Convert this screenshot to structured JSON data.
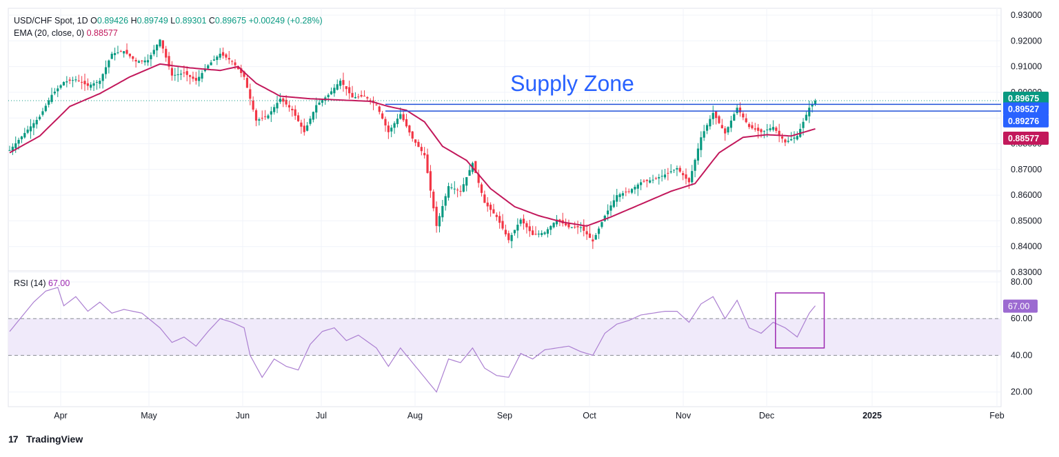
{
  "legend": {
    "symbol": "USD/CHF Spot, 1D",
    "open_label": "O",
    "open": "0.89426",
    "high_label": "H",
    "high": "0.89749",
    "low_label": "L",
    "low": "0.89301",
    "close_label": "C",
    "close": "0.89675",
    "change": "+0.00249 (+0.28%)",
    "ema_label": "EMA (20, close, 0)",
    "ema_value": "0.88577",
    "rsi_label": "RSI (14)",
    "rsi_value": "67.00"
  },
  "annotation": {
    "supply_zone": "Supply Zone"
  },
  "brand": {
    "logo": "17",
    "name": "TradingView"
  },
  "colors": {
    "up": "#089981",
    "down": "#f23645",
    "ema": "#c2185b",
    "zone": "#1e4fd8",
    "rsi": "#9c27b0",
    "rsi_band": "#f0eafa"
  },
  "chart_data": [
    {
      "type": "candlestick",
      "title": "USD/CHF Spot, 1D",
      "ylim": [
        0.83,
        0.935
      ],
      "y_ticks": [
        "0.83000",
        "0.84000",
        "0.85000",
        "0.86000",
        "0.87000",
        "0.88000",
        "0.89000",
        "0.90000",
        "0.91000",
        "0.92000",
        "0.93000"
      ],
      "x_ticks": [
        "Apr",
        "May",
        "Jun",
        "Jul",
        "Aug",
        "Sep",
        "Oct",
        "Nov",
        "Dec",
        "2025",
        "Feb"
      ],
      "supply_zone": [
        0.8927,
        0.8953
      ],
      "price_labels": [
        "0.89675",
        "0.89527",
        "0.89276",
        "0.88577"
      ],
      "series": [
        {
          "name": "USD/CHF",
          "close_path": [
            [
              0,
              0.8775
            ],
            [
              6,
              0.8855
            ],
            [
              10,
              0.8905
            ],
            [
              14,
              0.899
            ],
            [
              18,
              0.904
            ],
            [
              22,
              0.905
            ],
            [
              26,
              0.9025
            ],
            [
              30,
              0.9045
            ],
            [
              34,
              0.915
            ],
            [
              38,
              0.916
            ],
            [
              42,
              0.912
            ],
            [
              46,
              0.9125
            ],
            [
              50,
              0.9205
            ],
            [
              54,
              0.9065
            ],
            [
              58,
              0.9075
            ],
            [
              62,
              0.9045
            ],
            [
              66,
              0.9105
            ],
            [
              70,
              0.915
            ],
            [
              74,
              0.912
            ],
            [
              78,
              0.906
            ],
            [
              82,
              0.889
            ],
            [
              86,
              0.891
            ],
            [
              90,
              0.8975
            ],
            [
              94,
              0.893
            ],
            [
              98,
              0.8845
            ],
            [
              102,
              0.895
            ],
            [
              106,
              0.899
            ],
            [
              110,
              0.9045
            ],
            [
              114,
              0.898
            ],
            [
              118,
              0.8985
            ],
            [
              122,
              0.895
            ],
            [
              126,
              0.8845
            ],
            [
              130,
              0.8915
            ],
            [
              134,
              0.882
            ],
            [
              138,
              0.8755
            ],
            [
              142,
              0.848
            ],
            [
              146,
              0.8635
            ],
            [
              150,
              0.8615
            ],
            [
              154,
              0.8725
            ],
            [
              158,
              0.857
            ],
            [
              162,
              0.8515
            ],
            [
              166,
              0.8425
            ],
            [
              170,
              0.8505
            ],
            [
              174,
              0.8445
            ],
            [
              178,
              0.8455
            ],
            [
              182,
              0.8505
            ],
            [
              186,
              0.8475
            ],
            [
              190,
              0.8475
            ],
            [
              194,
              0.842
            ],
            [
              198,
              0.852
            ],
            [
              202,
              0.86
            ],
            [
              206,
              0.8615
            ],
            [
              210,
              0.865
            ],
            [
              214,
              0.866
            ],
            [
              218,
              0.868
            ],
            [
              222,
              0.8705
            ],
            [
              226,
              0.865
            ],
            [
              230,
              0.8825
            ],
            [
              234,
              0.892
            ],
            [
              238,
              0.884
            ],
            [
              242,
              0.894
            ],
            [
              246,
              0.8865
            ],
            [
              250,
              0.8845
            ],
            [
              254,
              0.8865
            ],
            [
              258,
              0.8805
            ],
            [
              262,
              0.883
            ],
            [
              266,
              0.894
            ],
            [
              268,
              0.89675
            ]
          ]
        },
        {
          "name": "EMA (20, close, 0)",
          "path": [
            [
              0,
              0.8765
            ],
            [
              10,
              0.883
            ],
            [
              20,
              0.8945
            ],
            [
              30,
              0.8995
            ],
            [
              40,
              0.906
            ],
            [
              50,
              0.911
            ],
            [
              60,
              0.9095
            ],
            [
              70,
              0.9085
            ],
            [
              76,
              0.91
            ],
            [
              82,
              0.9035
            ],
            [
              90,
              0.8985
            ],
            [
              100,
              0.8975
            ],
            [
              110,
              0.897
            ],
            [
              120,
              0.8965
            ],
            [
              126,
              0.8945
            ],
            [
              132,
              0.893
            ],
            [
              138,
              0.8885
            ],
            [
              144,
              0.879
            ],
            [
              152,
              0.8735
            ],
            [
              160,
              0.8625
            ],
            [
              168,
              0.8555
            ],
            [
              176,
              0.852
            ],
            [
              184,
              0.8495
            ],
            [
              192,
              0.848
            ],
            [
              200,
              0.8515
            ],
            [
              210,
              0.8565
            ],
            [
              220,
              0.8615
            ],
            [
              228,
              0.8645
            ],
            [
              236,
              0.8765
            ],
            [
              244,
              0.8825
            ],
            [
              252,
              0.8835
            ],
            [
              260,
              0.883
            ],
            [
              268,
              0.8858
            ]
          ]
        }
      ]
    },
    {
      "type": "line",
      "title": "RSI (14)",
      "ylim": [
        15,
        85
      ],
      "y_ticks": [
        "20.00",
        "40.00",
        "60.00",
        "80.00"
      ],
      "band": [
        40,
        60
      ],
      "series": [
        {
          "name": "RSI (14)",
          "path": [
            [
              0,
              53
            ],
            [
              4,
              61
            ],
            [
              8,
              69
            ],
            [
              12,
              75
            ],
            [
              16,
              77
            ],
            [
              18,
              67
            ],
            [
              22,
              72
            ],
            [
              26,
              64
            ],
            [
              30,
              69
            ],
            [
              34,
              63
            ],
            [
              38,
              65
            ],
            [
              44,
              63
            ],
            [
              50,
              55
            ],
            [
              54,
              47
            ],
            [
              58,
              50
            ],
            [
              62,
              45
            ],
            [
              66,
              53
            ],
            [
              70,
              60
            ],
            [
              74,
              58
            ],
            [
              78,
              55
            ],
            [
              80,
              40
            ],
            [
              84,
              28
            ],
            [
              88,
              38
            ],
            [
              92,
              34
            ],
            [
              96,
              32
            ],
            [
              100,
              46
            ],
            [
              104,
              53
            ],
            [
              108,
              55
            ],
            [
              112,
              48
            ],
            [
              116,
              51
            ],
            [
              122,
              44
            ],
            [
              126,
              34
            ],
            [
              130,
              44
            ],
            [
              134,
              36
            ],
            [
              138,
              28
            ],
            [
              142,
              20
            ],
            [
              146,
              38
            ],
            [
              150,
              36
            ],
            [
              154,
              44
            ],
            [
              158,
              33
            ],
            [
              162,
              29
            ],
            [
              166,
              28
            ],
            [
              170,
              41
            ],
            [
              174,
              38
            ],
            [
              178,
              43
            ],
            [
              182,
              44
            ],
            [
              186,
              45
            ],
            [
              190,
              42
            ],
            [
              194,
              40
            ],
            [
              198,
              52
            ],
            [
              202,
              57
            ],
            [
              206,
              59
            ],
            [
              210,
              62
            ],
            [
              214,
              63
            ],
            [
              218,
              64
            ],
            [
              222,
              64
            ],
            [
              226,
              58
            ],
            [
              230,
              68
            ],
            [
              234,
              72
            ],
            [
              238,
              60
            ],
            [
              242,
              70
            ],
            [
              246,
              55
            ],
            [
              250,
              52
            ],
            [
              254,
              58
            ],
            [
              258,
              55
            ],
            [
              262,
              50
            ],
            [
              266,
              63
            ],
            [
              268,
              67
            ]
          ]
        }
      ]
    }
  ]
}
